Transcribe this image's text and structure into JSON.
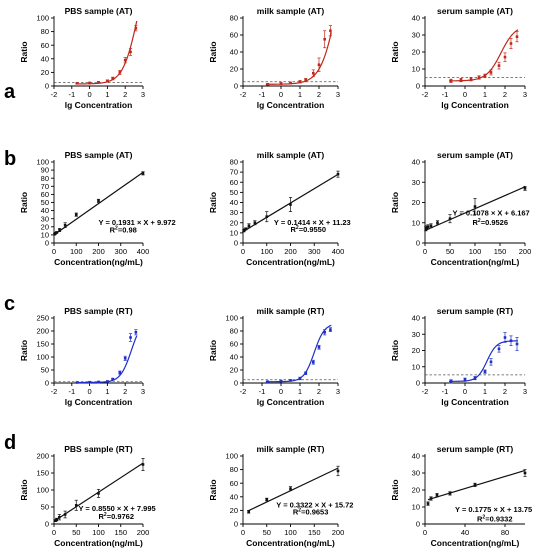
{
  "panel_labels": [
    "a",
    "b",
    "c",
    "d"
  ],
  "colors": {
    "AT": "#c0281a",
    "RT": "#1f2fc8",
    "fit": "#111111"
  },
  "chart_data": [
    {
      "row": 0,
      "col": 0,
      "type": "scatter",
      "style": "curve-at",
      "title": "PBS sample (AT)",
      "xlabel": "lg Concentration",
      "ylabel": "Ratio",
      "xlim": [
        -2,
        3
      ],
      "ylim": [
        0,
        100
      ],
      "xticks": [
        "-2",
        "-1",
        "0",
        "1",
        "2",
        "3"
      ],
      "yticks": [
        "0",
        "20",
        "40",
        "60",
        "80",
        "100"
      ],
      "threshold": 5,
      "fit_curve": {
        "bottom": 3,
        "top": 200,
        "logEC50": 2.7,
        "hill": 1.05
      },
      "series": [
        {
          "x": [
            -0.7,
            0,
            0.5,
            1,
            1.3,
            1.7,
            2,
            2.3,
            2.6
          ],
          "y": [
            4,
            4.5,
            5.5,
            7.5,
            11,
            20,
            38,
            50,
            85
          ],
          "err": [
            1,
            1,
            1,
            1.5,
            2,
            3,
            4,
            5,
            4
          ]
        }
      ]
    },
    {
      "row": 0,
      "col": 1,
      "type": "scatter",
      "style": "curve-at",
      "title": "milk sample (AT)",
      "xlabel": "lg Concentration",
      "ylabel": "Ratio",
      "xlim": [
        -2,
        3
      ],
      "ylim": [
        0,
        80
      ],
      "xticks": [
        "-2",
        "-1",
        "0",
        "1",
        "2",
        "3"
      ],
      "yticks": [
        "0",
        "20",
        "40",
        "60",
        "80"
      ],
      "threshold": 5,
      "fit_curve": {
        "bottom": 2,
        "top": 200,
        "logEC50": 3.0,
        "hill": 1.0
      },
      "series": [
        {
          "x": [
            -0.7,
            0,
            0.5,
            1,
            1.3,
            1.7,
            2,
            2.3,
            2.6
          ],
          "y": [
            2,
            3,
            3.5,
            5,
            7,
            15,
            25,
            55,
            65
          ],
          "err": [
            1,
            1,
            1,
            1.5,
            2,
            4,
            8,
            10,
            6
          ]
        }
      ]
    },
    {
      "row": 0,
      "col": 2,
      "type": "scatter",
      "style": "curve-at",
      "title": "serum sample (AT)",
      "xlabel": "lg Concentration",
      "ylabel": "Ratio",
      "xlim": [
        -2,
        3
      ],
      "ylim": [
        0,
        40
      ],
      "xticks": [
        "-2",
        "-1",
        "0",
        "1",
        "2",
        "3"
      ],
      "yticks": [
        "0",
        "10",
        "20",
        "30",
        "40"
      ],
      "threshold": 5,
      "fit_curve": {
        "bottom": 3,
        "top": 36,
        "logEC50": 1.8,
        "hill": 1.2
      },
      "series": [
        {
          "x": [
            -0.7,
            -0.2,
            0.3,
            0.7,
            1,
            1.3,
            1.7,
            2,
            2.3,
            2.6
          ],
          "y": [
            3,
            3.5,
            4,
            5,
            6,
            8,
            12,
            17,
            25,
            29
          ],
          "err": [
            1,
            1,
            1,
            1,
            1,
            1.5,
            2,
            2.5,
            3,
            3
          ]
        }
      ]
    },
    {
      "row": 1,
      "col": 0,
      "type": "scatter",
      "style": "linear",
      "title": "PBS sample (AT)",
      "xlabel": "Concentration(ng/mL)",
      "ylabel": "Ratio",
      "xlim": [
        0,
        400
      ],
      "ylim": [
        0,
        100
      ],
      "xticks": [
        "0",
        "100",
        "200",
        "300",
        "400"
      ],
      "yticks": [
        "0",
        "10",
        "20",
        "30",
        "40",
        "50",
        "60",
        "70",
        "80",
        "90",
        "100"
      ],
      "equation": "Y = 0.1931 × X + 9.972",
      "r2_prefix": "R",
      "r2_value": "=0.98",
      "eq_pos": [
        200,
        22
      ],
      "r2_pos": [
        250,
        13
      ],
      "fit": {
        "slope": 0.1931,
        "intercept": 9.972,
        "x0": 0,
        "x1": 400
      },
      "series": [
        {
          "x": [
            3,
            6,
            12,
            25,
            50,
            100,
            200,
            400
          ],
          "y": [
            11,
            12,
            13,
            16,
            22,
            35,
            52,
            86
          ],
          "err": [
            1,
            1,
            1,
            2,
            3,
            2,
            2,
            2
          ]
        }
      ]
    },
    {
      "row": 1,
      "col": 1,
      "type": "scatter",
      "style": "linear",
      "title": "milk sample (AT)",
      "xlabel": "Concentration(ng/mL)",
      "ylabel": "Ratio",
      "xlim": [
        0,
        400
      ],
      "ylim": [
        0,
        80
      ],
      "xticks": [
        "0",
        "100",
        "200",
        "300",
        "400"
      ],
      "yticks": [
        "0",
        "10",
        "20",
        "30",
        "40",
        "50",
        "60",
        "70",
        "80"
      ],
      "equation": "Y = 0.1414 × X + 11.23",
      "r2_prefix": "R",
      "r2_value": "=0.9550",
      "eq_pos": [
        130,
        18
      ],
      "r2_pos": [
        200,
        11
      ],
      "fit": {
        "slope": 0.1414,
        "intercept": 11.23,
        "x0": 0,
        "x1": 400
      },
      "series": [
        {
          "x": [
            3,
            6,
            12,
            25,
            50,
            100,
            200,
            400
          ],
          "y": [
            12,
            13,
            14,
            17,
            20,
            26,
            38,
            68
          ],
          "err": [
            1,
            1,
            1,
            2,
            2,
            5,
            7,
            3
          ]
        }
      ]
    },
    {
      "row": 1,
      "col": 2,
      "type": "scatter",
      "style": "linear",
      "title": "serum sample (AT)",
      "xlabel": "Concentration(ng/mL)",
      "ylabel": "Ratio",
      "xlim": [
        0,
        200
      ],
      "ylim": [
        0,
        40
      ],
      "xticks": [
        "0",
        "50",
        "100",
        "150",
        "200"
      ],
      "yticks": [
        "0",
        "10",
        "20",
        "30",
        "40"
      ],
      "equation": "Y = 0.1078 × X + 6.167",
      "r2_prefix": "R",
      "r2_value": "=0.9526",
      "eq_pos": [
        55,
        13.5
      ],
      "r2_pos": [
        95,
        9
      ],
      "fit": {
        "slope": 0.1078,
        "intercept": 6.167,
        "x0": 0,
        "x1": 200
      },
      "series": [
        {
          "x": [
            1.5,
            3,
            6,
            12,
            25,
            50,
            100,
            200
          ],
          "y": [
            7,
            7.5,
            8,
            8.5,
            10,
            12,
            18,
            27
          ],
          "err": [
            1,
            1,
            1,
            1,
            1,
            2,
            4,
            1
          ]
        }
      ]
    },
    {
      "row": 2,
      "col": 0,
      "type": "scatter",
      "style": "curve-rt",
      "title": "PBS sample (RT)",
      "xlabel": "lg Concentration",
      "ylabel": "Ratio",
      "xlim": [
        -2,
        3
      ],
      "ylim": [
        0,
        250
      ],
      "xticks": [
        "-2",
        "-1",
        "0",
        "1",
        "2",
        "3"
      ],
      "yticks": [
        "0",
        "50",
        "100",
        "150",
        "200",
        "250"
      ],
      "threshold": 5,
      "fit_curve": {
        "bottom": 2,
        "top": 250,
        "logEC50": 2.35,
        "hill": 1.4
      },
      "series": [
        {
          "x": [
            -0.7,
            0,
            0.5,
            1,
            1.3,
            1.7,
            2,
            2.3,
            2.6
          ],
          "y": [
            2,
            3,
            4,
            6,
            15,
            40,
            95,
            175,
            195
          ],
          "err": [
            1,
            1,
            1,
            2,
            3,
            6,
            8,
            15,
            10
          ]
        }
      ]
    },
    {
      "row": 2,
      "col": 1,
      "type": "scatter",
      "style": "curve-rt",
      "title": "milk sample (RT)",
      "xlabel": "lg Concentration",
      "ylabel": "Ratio",
      "xlim": [
        -2,
        3
      ],
      "ylim": [
        0,
        100
      ],
      "xticks": [
        "-2",
        "-1",
        "0",
        "1",
        "2",
        "3"
      ],
      "yticks": [
        "0",
        "20",
        "40",
        "60",
        "80",
        "100"
      ],
      "threshold": 5,
      "fit_curve": {
        "bottom": 2,
        "top": 92,
        "logEC50": 1.75,
        "hill": 1.6
      },
      "series": [
        {
          "x": [
            -0.7,
            0,
            0.5,
            1,
            1.3,
            1.7,
            2,
            2.3,
            2.6
          ],
          "y": [
            2,
            3,
            4,
            7,
            15,
            32,
            55,
            78,
            82
          ],
          "err": [
            1,
            1,
            1,
            2,
            2,
            3,
            3,
            4,
            3
          ]
        }
      ]
    },
    {
      "row": 2,
      "col": 2,
      "type": "scatter",
      "style": "curve-rt",
      "title": "serum sample (RT)",
      "xlabel": "lg Concentration",
      "ylabel": "Ratio",
      "xlim": [
        -2,
        3
      ],
      "ylim": [
        0,
        40
      ],
      "xticks": [
        "-2",
        "-1",
        "0",
        "1",
        "2",
        "3"
      ],
      "yticks": [
        "0",
        "10",
        "20",
        "30",
        "40"
      ],
      "threshold": 5,
      "fit_curve": {
        "bottom": 1,
        "top": 26,
        "logEC50": 1.1,
        "hill": 1.8
      },
      "series": [
        {
          "x": [
            -0.7,
            0,
            0.5,
            1,
            1.3,
            1.7,
            2,
            2.3,
            2.6
          ],
          "y": [
            1,
            2,
            3,
            7,
            13,
            21,
            28,
            26,
            24
          ],
          "err": [
            1,
            1,
            1,
            1,
            2,
            2,
            3,
            3,
            4
          ]
        }
      ]
    },
    {
      "row": 3,
      "col": 0,
      "type": "scatter",
      "style": "linear",
      "title": "PBS sample (RT)",
      "xlabel": "Concentration(ng/mL)",
      "ylabel": "Ratio",
      "xlim": [
        0,
        200
      ],
      "ylim": [
        0,
        200
      ],
      "xticks": [
        "0",
        "50",
        "100",
        "150",
        "200"
      ],
      "yticks": [
        "0",
        "50",
        "100",
        "150",
        "200"
      ],
      "equation": "Y = 0.8550 × X + 7.995",
      "r2_prefix": "R",
      "r2_value": "=0.9762",
      "eq_pos": [
        55,
        38
      ],
      "r2_pos": [
        100,
        15
      ],
      "fit": {
        "slope": 0.855,
        "intercept": 7.995,
        "x0": 0,
        "x1": 200
      },
      "series": [
        {
          "x": [
            3,
            6,
            12,
            25,
            50,
            100,
            200
          ],
          "y": [
            10,
            13,
            20,
            28,
            55,
            90,
            175
          ],
          "err": [
            3,
            4,
            8,
            10,
            15,
            12,
            18
          ]
        }
      ]
    },
    {
      "row": 3,
      "col": 1,
      "type": "scatter",
      "style": "linear",
      "title": "milk sample (RT)",
      "xlabel": "Concentration(ng/mL)",
      "ylabel": "Ratio",
      "xlim": [
        0,
        200
      ],
      "ylim": [
        0,
        100
      ],
      "xticks": [
        "0",
        "50",
        "100",
        "150",
        "200"
      ],
      "yticks": [
        "0",
        "20",
        "40",
        "60",
        "80",
        "100"
      ],
      "equation": "Y = 0.3322 × X + 15.72",
      "r2_prefix": "R",
      "r2_value": "=0.9653",
      "eq_pos": [
        70,
        24
      ],
      "r2_pos": [
        105,
        14
      ],
      "fit": {
        "slope": 0.3322,
        "intercept": 15.72,
        "x0": 12,
        "x1": 200
      },
      "series": [
        {
          "x": [
            12,
            50,
            100,
            200
          ],
          "y": [
            18,
            36,
            52,
            78
          ],
          "err": [
            2,
            2,
            3,
            7
          ]
        }
      ]
    },
    {
      "row": 3,
      "col": 2,
      "type": "scatter",
      "style": "linear",
      "title": "serum sample (RT)",
      "xlabel": "Concentration(ng/mL)",
      "ylabel": "Ratio",
      "xlim": [
        0,
        100
      ],
      "ylim": [
        0,
        40
      ],
      "xticks": [
        "0",
        "40",
        "80"
      ],
      "yticks": [
        "0",
        "10",
        "20",
        "30",
        "40"
      ],
      "equation": "Y = 0.1775 × X + 13.75",
      "r2_prefix": "R",
      "r2_value": "=0.9332",
      "eq_pos": [
        30,
        7
      ],
      "r2_pos": [
        52,
        1.5
      ],
      "fit": {
        "slope": 0.1775,
        "intercept": 13.75,
        "x0": 3,
        "x1": 100
      },
      "series": [
        {
          "x": [
            3,
            6,
            12,
            25,
            50,
            100
          ],
          "y": [
            12,
            15,
            17,
            18,
            23,
            30
          ],
          "err": [
            1,
            1,
            1,
            1,
            1,
            2
          ]
        }
      ]
    }
  ]
}
